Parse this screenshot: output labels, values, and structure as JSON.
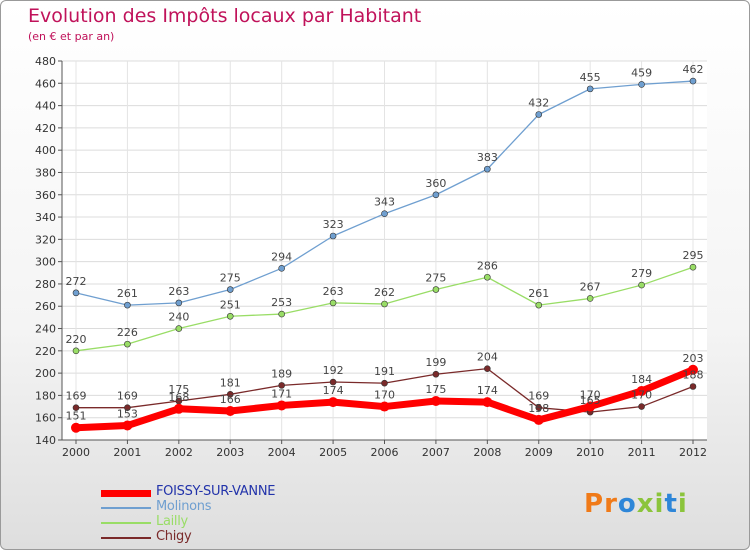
{
  "header": {
    "title": "Evolution des Impôts locaux par Habitant",
    "subtitle": "(en € et par an)"
  },
  "logo": {
    "letters": [
      "P",
      "r",
      "o",
      "x",
      "i",
      "t",
      "i"
    ],
    "colors": [
      "#f07a18",
      "#f07a18",
      "#2e86d8",
      "#8bc43b",
      "#8bc43b",
      "#2e86d8",
      "#8bc43b"
    ]
  },
  "chart_data": {
    "type": "line",
    "x": [
      "2000",
      "2001",
      "2002",
      "2003",
      "2004",
      "2005",
      "2006",
      "2007",
      "2008",
      "2009",
      "2010",
      "2011",
      "2012"
    ],
    "ylim": [
      140,
      480
    ],
    "yticks": [
      140,
      160,
      180,
      200,
      220,
      240,
      260,
      280,
      300,
      320,
      340,
      360,
      380,
      400,
      420,
      440,
      460,
      480
    ],
    "grid": true,
    "legend": "bottom-left",
    "series": [
      {
        "name": "FOISSY-SUR-VANNE",
        "color": "#ff0000",
        "values": [
          151,
          153,
          168,
          166,
          171,
          174,
          170,
          175,
          174,
          158,
          170,
          184,
          203
        ]
      },
      {
        "name": "Molinons",
        "color": "#6f9fd0",
        "values": [
          272,
          261,
          263,
          275,
          294,
          323,
          343,
          360,
          383,
          432,
          455,
          459,
          462
        ]
      },
      {
        "name": "Lailly",
        "color": "#99dd66",
        "values": [
          220,
          226,
          240,
          251,
          253,
          263,
          262,
          275,
          286,
          261,
          267,
          279,
          295
        ]
      },
      {
        "name": "Chigy",
        "color": "#7a2a2a",
        "values": [
          169,
          169,
          175,
          181,
          189,
          192,
          191,
          199,
          204,
          169,
          165,
          170,
          188
        ]
      }
    ]
  }
}
